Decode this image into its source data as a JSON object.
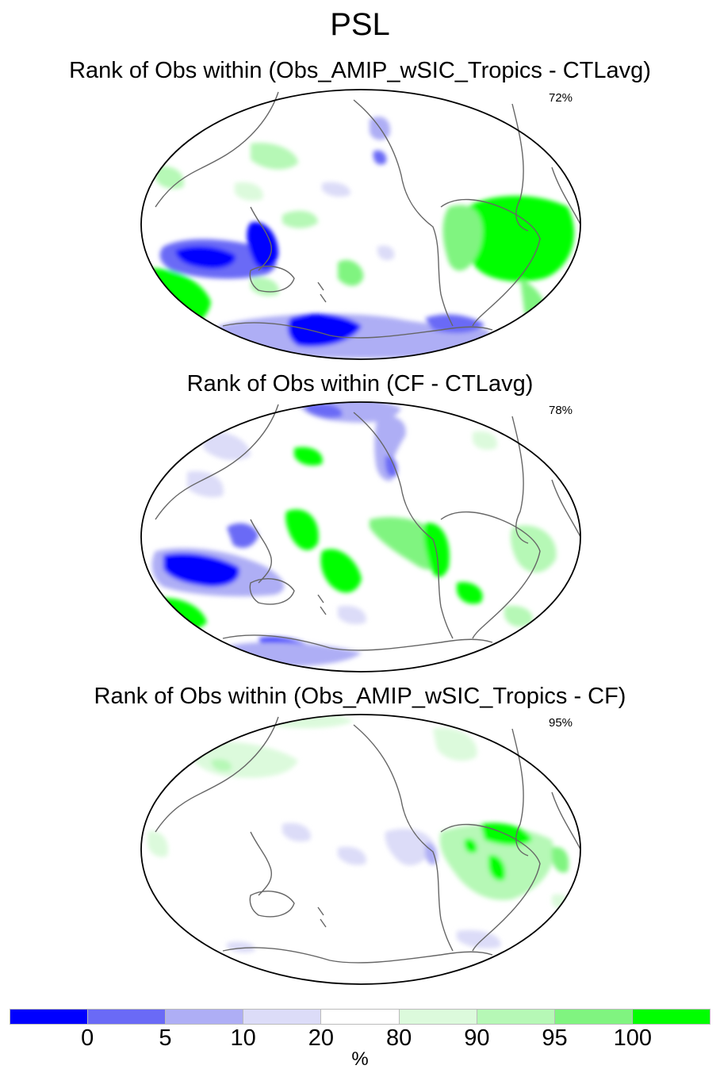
{
  "title": "PSL",
  "panels": [
    {
      "title": "Rank of Obs within (Obs_AMIP_wSIC_Tropics - CTLavg)",
      "percent": "72%"
    },
    {
      "title": "Rank of Obs within (CF - CTLavg)",
      "percent": "78%"
    },
    {
      "title": "Rank of Obs within (Obs_AMIP_wSIC_Tropics - CF)",
      "percent": "95%"
    }
  ],
  "colorbar": {
    "unit": "%",
    "ticks": [
      "0",
      "5",
      "10",
      "20",
      "80",
      "90",
      "95",
      "100"
    ],
    "colors": [
      "#0000ff",
      "#6a6af6",
      "#aeaef5",
      "#dcdcf8",
      "#ffffff",
      "#dcfadc",
      "#b6f8b6",
      "#80f480",
      "#00ff00"
    ]
  },
  "palette": {
    "coast": "#666666",
    "outline": "#000000"
  }
}
